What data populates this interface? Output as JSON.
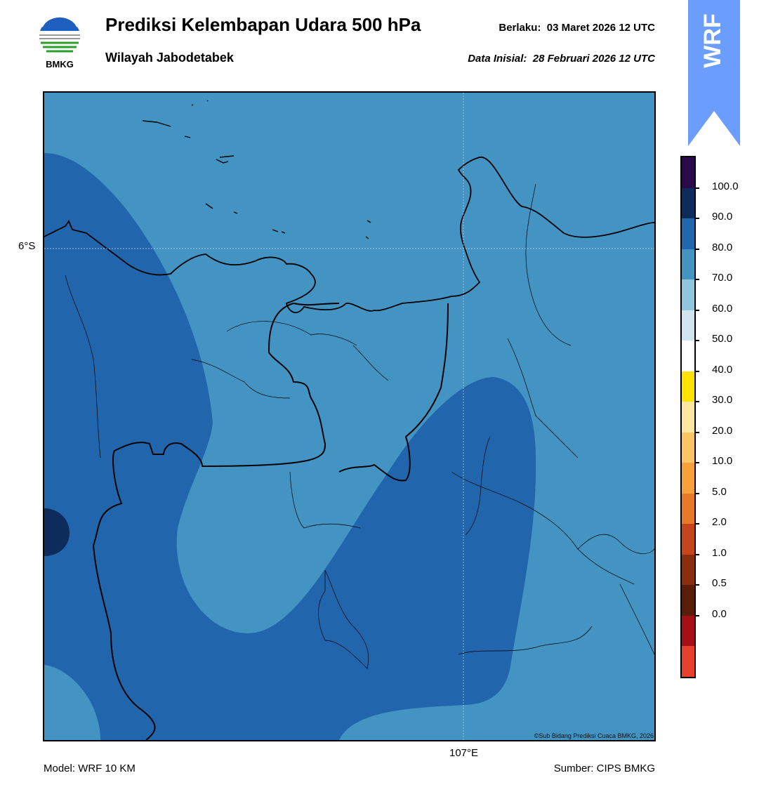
{
  "header": {
    "logo_text": "BMKG",
    "title": "Prediksi Kelembapan Udara 500 hPa",
    "region": "Wilayah Jabodetabek",
    "valid_label": "Berlaku:",
    "valid_time": "03 Maret 2026 12 UTC",
    "init_label": "Data Inisial:",
    "init_time": "28 Februari 2026 12 UTC"
  },
  "badge": {
    "text": "WRF"
  },
  "map": {
    "lat_label": "6°S",
    "lon_label": "107°E",
    "copyright": "©Sub Bidang Prediksi Cuaca BMKG, 2026"
  },
  "footer": {
    "model": "Model: WRF 10 KM",
    "source": "Sumber: CIPS BMKG"
  },
  "colorbar": {
    "labels": [
      "100.0",
      "90.0",
      "80.0",
      "70.0",
      "60.0",
      "50.0",
      "40.0",
      "30.0",
      "20.0",
      "10.0",
      "5.0",
      "2.0",
      "1.0",
      "0.5",
      "0.0"
    ],
    "colors": [
      "#2a0a4a",
      "#0d2c5c",
      "#2166ac",
      "#4393c3",
      "#92c5de",
      "#d1e5f0",
      "#ffffff",
      "#ffe200",
      "#ffe7a0",
      "#ffc564",
      "#f7a13b",
      "#e8782a",
      "#c4461a",
      "#8b2e0c",
      "#5a1d0a",
      "#a50f15",
      "#e8402e"
    ],
    "swatch_colors": {
      "r70_80": "#4393c3",
      "r80_90": "#2166ac",
      "r90_100": "#0d2c5c"
    }
  }
}
